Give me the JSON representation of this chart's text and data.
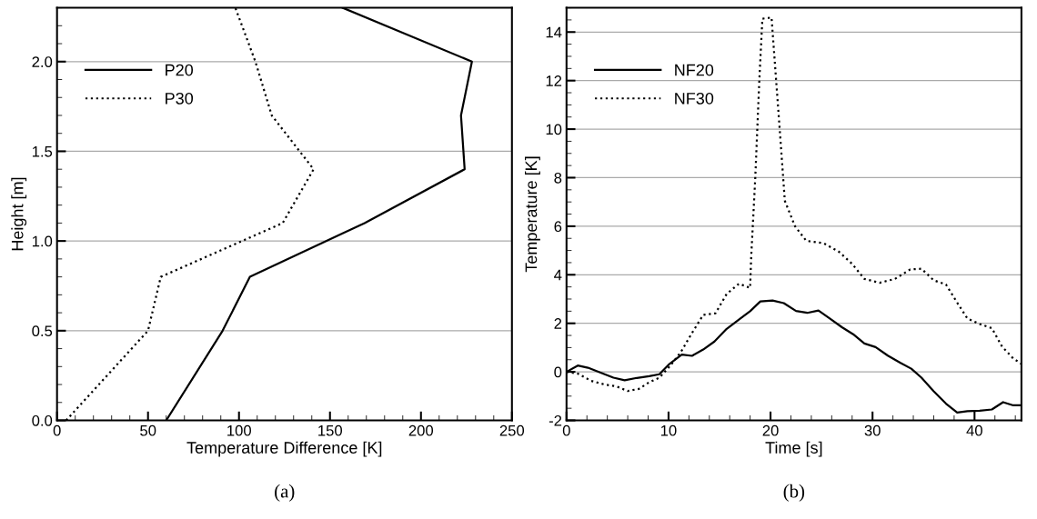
{
  "chart_data": [
    {
      "type": "line",
      "xlabel": "Temperature Difference [K]",
      "ylabel": "Height [m]",
      "annotations": [
        "(a)"
      ],
      "xlim": [
        0,
        250
      ],
      "xticks": [
        0,
        50,
        100,
        150,
        200,
        250
      ],
      "ylim": [
        0,
        2.3
      ],
      "yticks": [
        {
          "value": 0,
          "label": "0.0"
        },
        {
          "value": 0.5,
          "label": "0.5"
        },
        {
          "value": 1,
          "label": "1.0"
        },
        {
          "value": 1.5,
          "label": "1.5"
        },
        {
          "value": 2,
          "label": "2.0"
        }
      ],
      "grid": "y",
      "legend": "top left",
      "series": [
        {
          "name": "P20",
          "color": "#000000",
          "line_style": "solid",
          "x": [
            60,
            91,
            106,
            169,
            224,
            222,
            228,
            157
          ],
          "values": [
            0,
            0.5,
            0.8,
            1.1,
            1.4,
            1.7,
            2.0,
            2.3
          ]
        },
        {
          "name": "P30",
          "color": "#000000",
          "line_style": "dotted",
          "x": [
            5,
            50,
            57,
            124,
            141,
            118,
            109,
            98
          ],
          "values": [
            0,
            0.5,
            0.8,
            1.1,
            1.4,
            1.7,
            2.0,
            2.3
          ]
        }
      ]
    },
    {
      "type": "line",
      "xlabel": "Time [s]",
      "ylabel": "Temperature [K]",
      "annotations": [
        "(b)"
      ],
      "xlim": [
        0,
        44.6
      ],
      "xticks": [
        0,
        10,
        20,
        30,
        40
      ],
      "ylim": [
        -2,
        15
      ],
      "yticks": [
        -2,
        0,
        2,
        4,
        6,
        8,
        10,
        12,
        14
      ],
      "grid": "y",
      "legend": "top left",
      "series": [
        {
          "name": "NF20",
          "color": "#000000",
          "line_style": "solid",
          "x": [
            0,
            1.1,
            2.1,
            3.4,
            4.6,
            5.7,
            6.9,
            8.1,
            9.1,
            10.1,
            11.3,
            12.3,
            13.4,
            14.5,
            15.7,
            16.9,
            18.0,
            19.0,
            20.2,
            21.3,
            22.5,
            23.6,
            24.7,
            25.9,
            27.0,
            28.1,
            29.2,
            30.3,
            31.5,
            32.7,
            33.8,
            34.8,
            36.0,
            37.2,
            38.3,
            39.3,
            40.5,
            41.7,
            42.8,
            43.8,
            44.6
          ],
          "values": [
            0,
            0.26,
            0.17,
            -0.04,
            -0.24,
            -0.35,
            -0.25,
            -0.18,
            -0.1,
            0.33,
            0.71,
            0.66,
            0.92,
            1.25,
            1.77,
            2.15,
            2.5,
            2.9,
            2.94,
            2.83,
            2.51,
            2.43,
            2.53,
            2.17,
            1.84,
            1.55,
            1.17,
            1.02,
            0.67,
            0.38,
            0.13,
            -0.24,
            -0.8,
            -1.31,
            -1.68,
            -1.62,
            -1.6,
            -1.55,
            -1.25,
            -1.38,
            -1.38
          ]
        },
        {
          "name": "NF30",
          "color": "#000000",
          "line_style": "dotted",
          "x": [
            0,
            1.1,
            2.4,
            3.7,
            4.9,
            6.0,
            7.1,
            8.1,
            9.1,
            10.1,
            11.2,
            12.3,
            13.4,
            14.6,
            15.7,
            16.9,
            18.0,
            18.1,
            18.5,
            18.9,
            19.2,
            20.1,
            20.5,
            21.0,
            21.4,
            22.4,
            23.5,
            25.2,
            26.7,
            28.0,
            29.2,
            30.7,
            32.2,
            33.7,
            34.8,
            36.0,
            37.2,
            38.3,
            39.3,
            40.5,
            41.7,
            42.7,
            43.8,
            44.6
          ],
          "values": [
            0,
            -0.07,
            -0.37,
            -0.52,
            -0.6,
            -0.79,
            -0.7,
            -0.43,
            -0.24,
            0.22,
            0.81,
            1.6,
            2.35,
            2.41,
            3.21,
            3.63,
            3.46,
            4.7,
            7.96,
            12.0,
            14.55,
            14.6,
            12.3,
            9.4,
            7.05,
            6.0,
            5.4,
            5.3,
            4.95,
            4.45,
            3.83,
            3.67,
            3.83,
            4.22,
            4.25,
            3.77,
            3.6,
            2.85,
            2.2,
            1.97,
            1.8,
            1.04,
            0.55,
            0.33
          ]
        }
      ]
    }
  ]
}
